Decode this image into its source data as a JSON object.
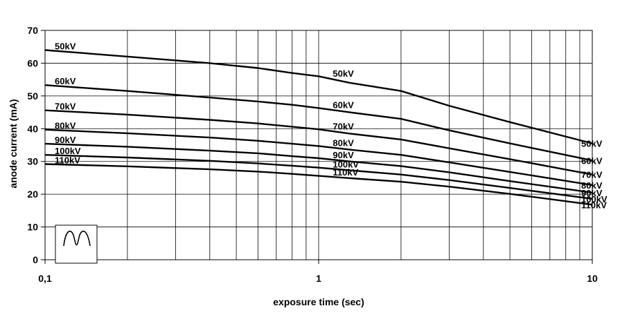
{
  "chart_data": {
    "type": "line",
    "xlabel": "exposure time   (sec)",
    "ylabel": "anode current   (mA)",
    "x_scale": "log",
    "xlim": [
      0.1,
      10
    ],
    "ylim": [
      0,
      70
    ],
    "x_ticks": [
      {
        "value": 0.1,
        "label": "0,1"
      },
      {
        "value": 1,
        "label": "1"
      },
      {
        "value": 10,
        "label": "10"
      }
    ],
    "y_ticks": [
      0,
      10,
      20,
      30,
      40,
      50,
      60,
      70
    ],
    "grid": true,
    "icon": "double-hump-waveform-icon",
    "series": [
      {
        "name": "50kV",
        "label": "50kV",
        "x": [
          0.1,
          0.2,
          0.4,
          0.6,
          0.8,
          1.0,
          1.3,
          2.0,
          3.0,
          5.0,
          10.0
        ],
        "values": [
          64,
          62,
          60,
          58.5,
          57,
          56,
          54,
          51.5,
          47,
          42,
          35.5
        ]
      },
      {
        "name": "60kV",
        "label": "60kV",
        "x": [
          0.1,
          0.2,
          0.4,
          0.6,
          0.8,
          1.0,
          1.3,
          2.0,
          3.0,
          5.0,
          10.0
        ],
        "values": [
          53.3,
          51.5,
          49.5,
          48.3,
          47.3,
          46.3,
          45,
          43,
          39.5,
          35.5,
          30.3
        ]
      },
      {
        "name": "70kV",
        "label": "70kV",
        "x": [
          0.1,
          0.2,
          0.4,
          0.6,
          0.8,
          1.0,
          1.3,
          2.0,
          3.0,
          5.0,
          10.0
        ],
        "values": [
          45.6,
          44.3,
          42.7,
          41.6,
          40.6,
          39.8,
          38.5,
          36.7,
          34,
          30.7,
          26
        ]
      },
      {
        "name": "80kV",
        "label": "80kV",
        "x": [
          0.1,
          0.2,
          0.4,
          0.6,
          0.8,
          1.0,
          1.3,
          2.0,
          3.0,
          5.0,
          10.0
        ],
        "values": [
          39.7,
          38.6,
          37.3,
          36.3,
          35.4,
          34.7,
          33.6,
          32,
          29.7,
          26.8,
          22.8
        ]
      },
      {
        "name": "90kV",
        "label": "90kV",
        "x": [
          0.1,
          0.2,
          0.4,
          0.6,
          0.8,
          1.0,
          1.3,
          2.0,
          3.0,
          5.0,
          10.0
        ],
        "values": [
          35.4,
          34.5,
          33.3,
          32.5,
          31.6,
          31,
          30,
          28.6,
          26.7,
          24,
          20.5
        ]
      },
      {
        "name": "100kV",
        "label": "100kV",
        "x": [
          0.1,
          0.2,
          0.4,
          0.6,
          0.8,
          1.0,
          1.3,
          2.0,
          3.0,
          5.0,
          10.0
        ],
        "values": [
          32,
          31.2,
          30.2,
          29.4,
          28.7,
          28.1,
          27.3,
          26,
          24.3,
          21.9,
          18.6
        ]
      },
      {
        "name": "110kV",
        "label": "110kV",
        "x": [
          0.1,
          0.2,
          0.4,
          0.6,
          0.8,
          1.0,
          1.3,
          2.0,
          3.0,
          5.0,
          10.0
        ],
        "values": [
          29.2,
          28.5,
          27.6,
          26.9,
          26.2,
          25.6,
          24.9,
          23.8,
          22.3,
          20.1,
          16.8
        ]
      }
    ]
  }
}
